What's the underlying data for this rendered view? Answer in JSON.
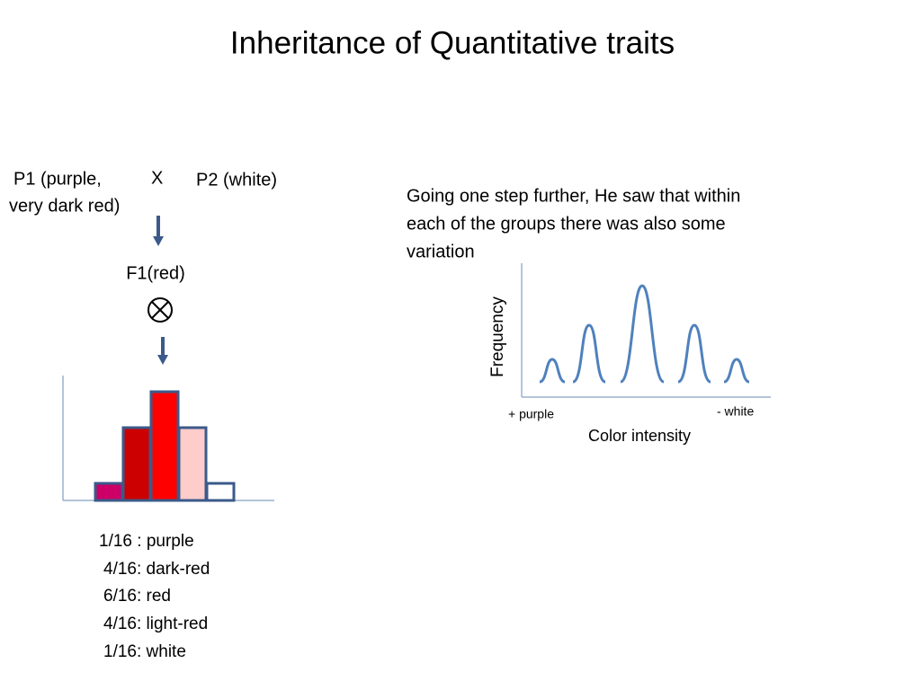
{
  "header": {
    "title": "Inheritance of Quantitative traits"
  },
  "cross": {
    "p1_line1": "P1 (purple,",
    "p1_line2": "very dark red)",
    "cross_sign": "X",
    "p2": "P2 (white)",
    "f1": "F1(red)"
  },
  "ratios": [
    "1/16 : purple",
    "4/16: dark-red",
    "6/16: red",
    "4/16: light-red",
    "1/16: white"
  ],
  "note": {
    "lines": [
      "Going one step further, He saw that within",
      "each of the groups there was also some",
      "variation"
    ]
  },
  "graph": {
    "y_label": "Frequency",
    "x_label": "Color intensity",
    "left_label": "+ purple",
    "right_label": "- white"
  }
}
